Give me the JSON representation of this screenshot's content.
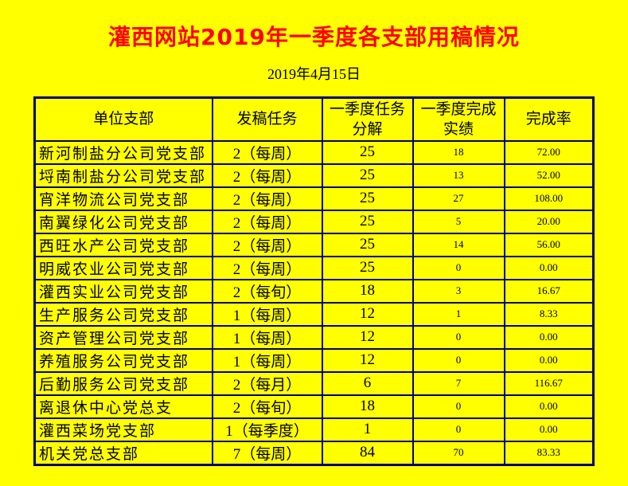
{
  "page": {
    "background_color": "#FFFF00",
    "accent_color": "#FF0000",
    "table_border_color": "#000080"
  },
  "header": {
    "title": "灌西网站2019年一季度各支部用稿情况",
    "date": "2019年4月15日"
  },
  "table": {
    "columns": [
      {
        "key": "unit",
        "label": "单位支部"
      },
      {
        "key": "task",
        "label": "发稿任务"
      },
      {
        "key": "plan",
        "label": "一季度任务\n分解"
      },
      {
        "key": "actual",
        "label": "一季度完成\n实绩"
      },
      {
        "key": "rate",
        "label": "完成率"
      }
    ],
    "rows": [
      {
        "unit": "新河制盐分公司党支部",
        "task": "2（每周）",
        "plan": "25",
        "actual": "18",
        "rate": "72.00"
      },
      {
        "unit": "埒南制盐分公司党支部",
        "task": "2（每周）",
        "plan": "25",
        "actual": "13",
        "rate": "52.00"
      },
      {
        "unit": "宵洋物流公司党支部",
        "task": "2（每周）",
        "plan": "25",
        "actual": "27",
        "rate": "108.00"
      },
      {
        "unit": "南翼绿化公司党支部",
        "task": "2（每周）",
        "plan": "25",
        "actual": "5",
        "rate": "20.00"
      },
      {
        "unit": "西旺水产公司党支部",
        "task": "2（每周）",
        "plan": "25",
        "actual": "14",
        "rate": "56.00"
      },
      {
        "unit": "明威农业公司党支部",
        "task": "2（每周）",
        "plan": "25",
        "actual": "0",
        "rate": "0.00"
      },
      {
        "unit": "灌西实业公司党支部",
        "task": "2（每旬）",
        "plan": "18",
        "actual": "3",
        "rate": "16.67"
      },
      {
        "unit": "生产服务公司党支部",
        "task": "1（每周）",
        "plan": "12",
        "actual": "1",
        "rate": "8.33"
      },
      {
        "unit": "资产管理公司党支部",
        "task": "1（每周）",
        "plan": "12",
        "actual": "0",
        "rate": "0.00"
      },
      {
        "unit": "养殖服务公司党支部",
        "task": "1（每周）",
        "plan": "12",
        "actual": "0",
        "rate": "0.00"
      },
      {
        "unit": "后勤服务公司党支部",
        "task": "2（每月）",
        "plan": "6",
        "actual": "7",
        "rate": "116.67"
      },
      {
        "unit": "离退休中心党总支",
        "task": "2（每旬）",
        "plan": "18",
        "actual": "0",
        "rate": "0.00"
      },
      {
        "unit": "灌西菜场党支部",
        "task": "1（每季度）",
        "plan": "1",
        "actual": "0",
        "rate": "0.00"
      },
      {
        "unit": "机关党总支部",
        "task": "7（每周）",
        "plan": "84",
        "actual": "70",
        "rate": "83.33"
      }
    ]
  }
}
